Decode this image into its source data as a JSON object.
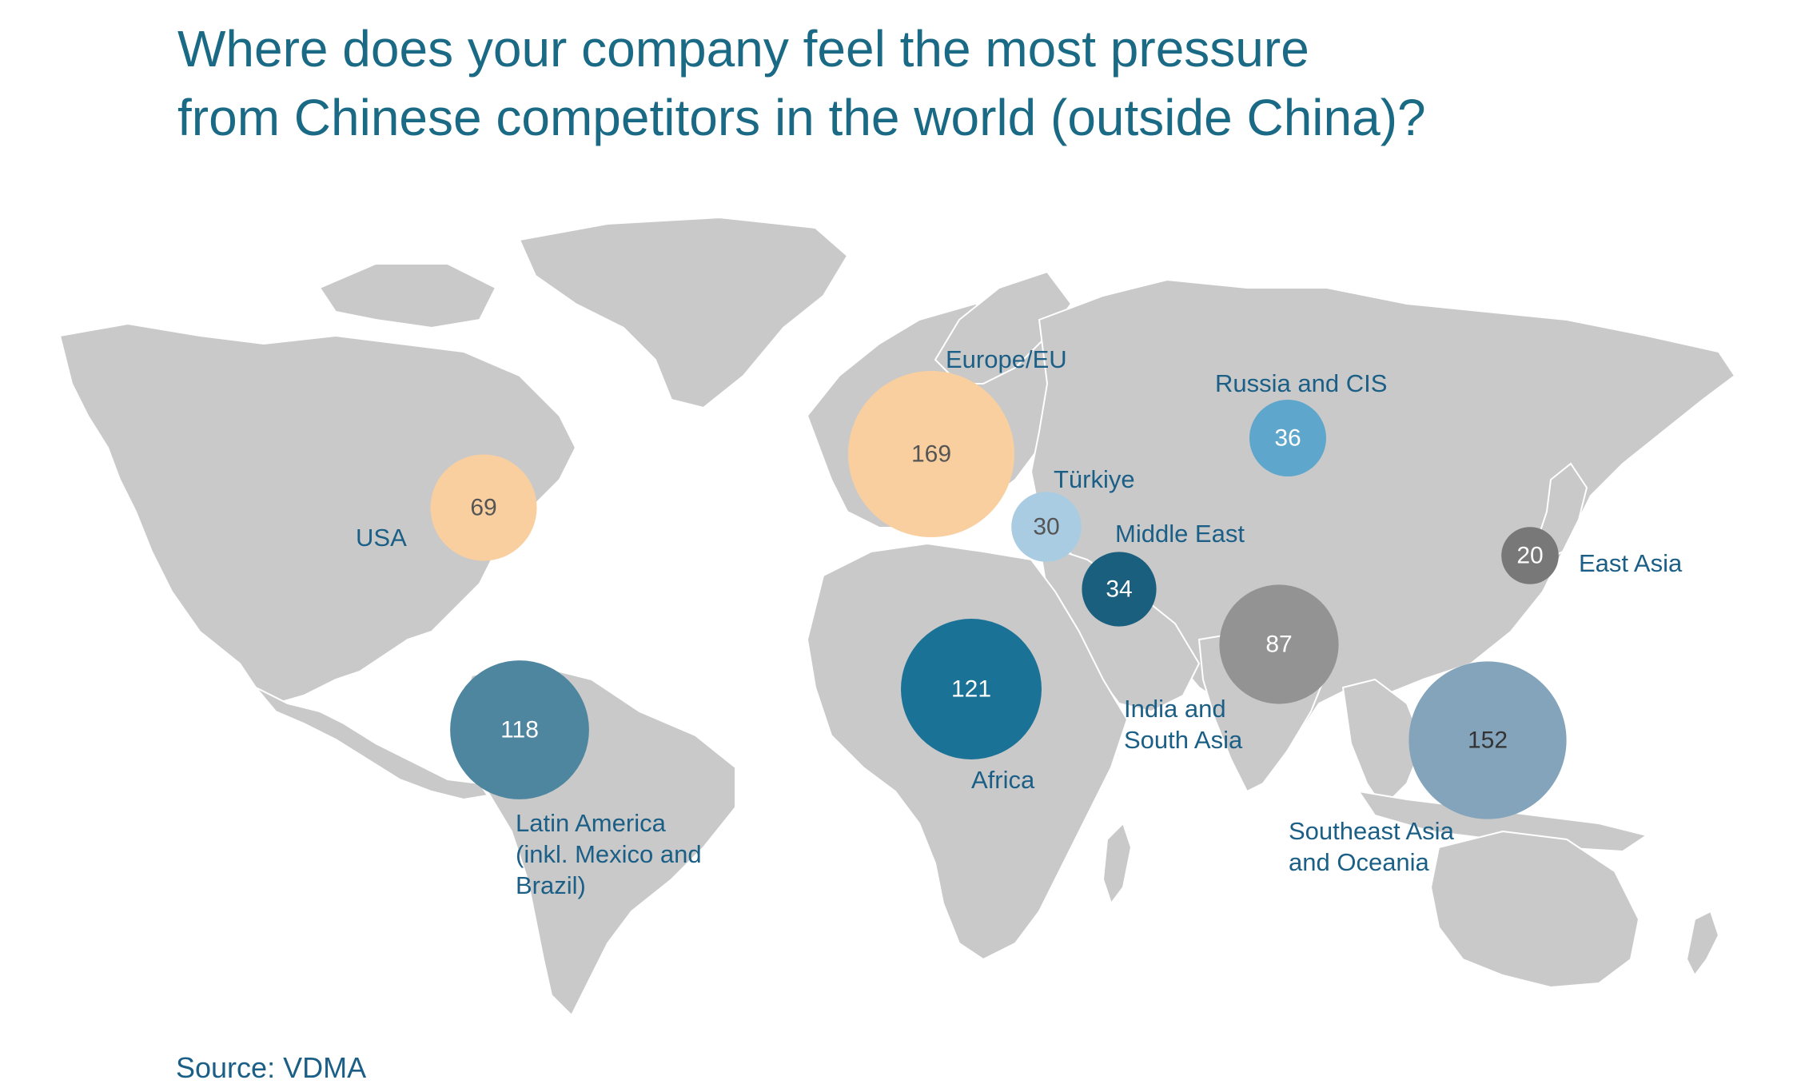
{
  "title": {
    "line1": "Where does your company feel the most pressure",
    "line2": "from Chinese competitors in the world (outside China)?"
  },
  "source": "Source: VDMA",
  "colors": {
    "land": "#c9c9c9",
    "title": "#1b6a85",
    "label": "#1b5f86"
  },
  "regions": [
    {
      "id": "usa",
      "value": "69",
      "label": [
        "USA"
      ],
      "color": "#f9cfa0",
      "text_color": "#555555"
    },
    {
      "id": "europe",
      "value": "169",
      "label": [
        "Europe/EU"
      ],
      "color": "#f9cfa0",
      "text_color": "#555555"
    },
    {
      "id": "turkiye",
      "value": "30",
      "label": [
        "Türkiye"
      ],
      "color": "#a9cce2",
      "text_color": "#555555"
    },
    {
      "id": "russia",
      "value": "36",
      "label": [
        "Russia and CIS"
      ],
      "color": "#5fa6cc",
      "text_color": "#ffffff"
    },
    {
      "id": "middle-east",
      "value": "34",
      "label": [
        "Middle East"
      ],
      "color": "#1b5f7e",
      "text_color": "#ffffff"
    },
    {
      "id": "east-asia",
      "value": "20",
      "label": [
        "East Asia"
      ],
      "color": "#787878",
      "text_color": "#ffffff"
    },
    {
      "id": "india",
      "value": "87",
      "label": [
        "India and",
        "South Asia"
      ],
      "color": "#939393",
      "text_color": "#ffffff"
    },
    {
      "id": "africa",
      "value": "121",
      "label": [
        "Africa"
      ],
      "color": "#1b7297",
      "text_color": "#ffffff"
    },
    {
      "id": "latam",
      "value": "118",
      "label": [
        "Latin America",
        "(inkl. Mexico and",
        "Brazil)"
      ],
      "color": "#4e869f",
      "text_color": "#ffffff"
    },
    {
      "id": "sea",
      "value": "152",
      "label": [
        "Southeast Asia",
        "and Oceania"
      ],
      "color": "#83a4bb",
      "text_color": "#333333"
    }
  ]
}
